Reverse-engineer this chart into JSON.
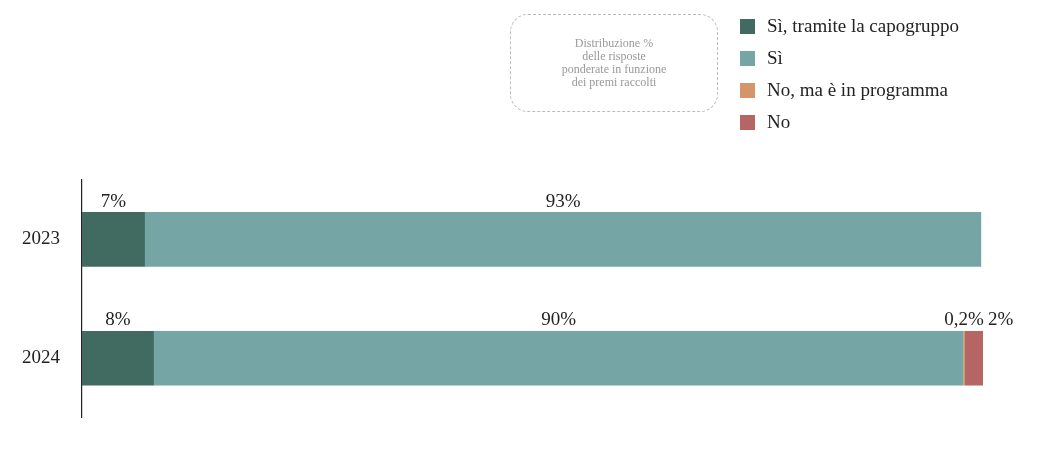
{
  "chart_data": {
    "type": "bar",
    "orientation": "horizontal",
    "stacked": true,
    "categories": [
      "2023",
      "2024"
    ],
    "series": [
      {
        "name": "Sì, tramite la capogruppo",
        "color": "#416b61",
        "values": [
          7,
          8
        ],
        "value_labels": [
          "7%",
          "8%"
        ]
      },
      {
        "name": "Sì",
        "color": "#76a5a5",
        "values": [
          93,
          90
        ],
        "value_labels": [
          "93%",
          "90%"
        ]
      },
      {
        "name": "No, ma è in programma",
        "color": "#d4956a",
        "values": [
          null,
          0.2
        ],
        "value_labels": [
          null,
          "0,2%"
        ]
      },
      {
        "name": "No",
        "color": "#b56563",
        "values": [
          null,
          2
        ],
        "value_labels": [
          null,
          "2%"
        ]
      }
    ],
    "tick_labels": "y",
    "grid": false,
    "legend": "top right",
    "annotations": [
      "Distribuzione %\ndelle risposte\nponderate in funzione\ndei premi raccolti"
    ]
  }
}
